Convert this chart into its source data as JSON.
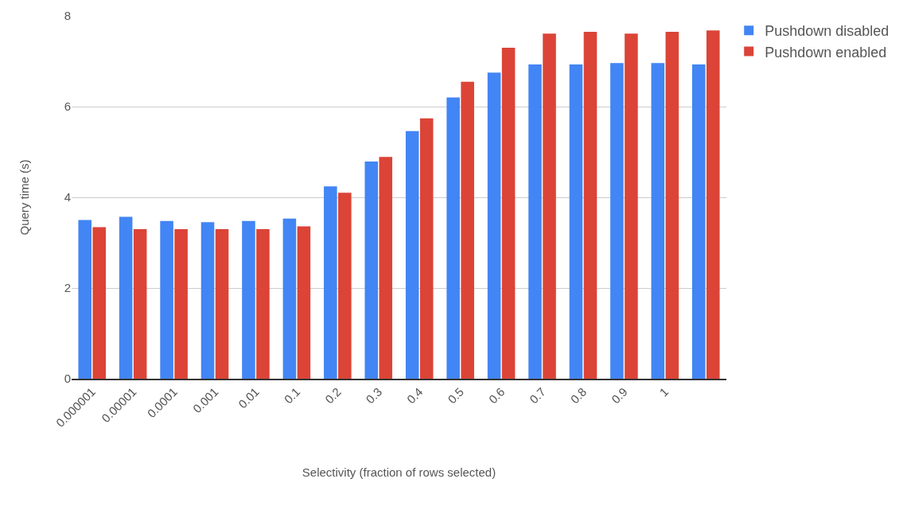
{
  "chart_data": {
    "type": "bar",
    "xlabel": "Selectivity (fraction of rows selected)",
    "ylabel": "Query time (s)",
    "categories": [
      "0.000001",
      "0.00001",
      "0.0001",
      "0.001",
      "0.01",
      "0.1",
      "0.2",
      "0.3",
      "0.4",
      "0.5",
      "0.6",
      "0.7",
      "0.8",
      "0.9",
      "1",
      null
    ],
    "series": [
      {
        "name": "Pushdown disabled",
        "color": "#4285f4",
        "values": [
          3.5,
          3.57,
          3.48,
          3.45,
          3.48,
          3.53,
          4.24,
          4.79,
          5.46,
          6.2,
          6.75,
          6.93,
          6.93,
          6.96,
          6.96,
          6.93
        ]
      },
      {
        "name": "Pushdown enabled",
        "color": "#db4437",
        "values": [
          3.34,
          3.3,
          3.3,
          3.3,
          3.3,
          3.36,
          4.1,
          4.89,
          5.74,
          6.55,
          7.3,
          7.61,
          7.65,
          7.61,
          7.65,
          7.68
        ]
      }
    ],
    "ylim": [
      0,
      8
    ],
    "yticks": [
      0,
      2,
      4,
      6,
      8
    ],
    "grid": "y",
    "legend": "top right"
  }
}
